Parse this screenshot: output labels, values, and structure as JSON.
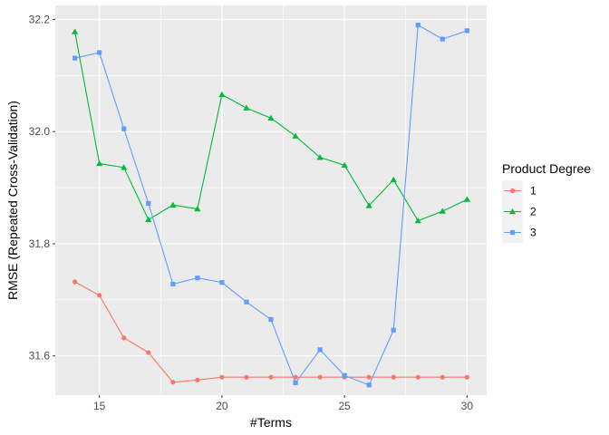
{
  "chart_data": {
    "type": "line",
    "xlabel": "#Terms",
    "ylabel": "RMSE (Repeated Cross-Validation)",
    "xlim": [
      13.2,
      30.8
    ],
    "ylim": [
      31.53,
      32.225
    ],
    "x_ticks": [
      15,
      20,
      25,
      30
    ],
    "x_tick_labels": [
      "15",
      "20",
      "25",
      "30"
    ],
    "y_ticks": [
      31.6,
      31.8,
      32.0,
      32.2
    ],
    "y_tick_labels": [
      "31.6",
      "31.8",
      "32.0",
      "32.2"
    ],
    "grid": true,
    "legend": {
      "title": "Product Degree",
      "placement": "right"
    },
    "x": [
      14,
      15,
      16,
      17,
      18,
      19,
      20,
      21,
      22,
      23,
      24,
      25,
      26,
      27,
      28,
      29,
      30
    ],
    "series": [
      {
        "name": "1",
        "color": "#F8766D",
        "marker": "circle",
        "values": [
          31.732,
          31.708,
          31.632,
          31.606,
          31.553,
          31.557,
          31.562,
          31.562,
          31.562,
          31.562,
          31.562,
          31.562,
          31.562,
          31.562,
          31.562,
          31.562,
          31.562
        ]
      },
      {
        "name": "2",
        "color": "#00BA38",
        "marker": "triangle",
        "values": [
          32.178,
          31.943,
          31.936,
          31.843,
          31.869,
          31.862,
          32.066,
          32.042,
          32.024,
          31.992,
          31.954,
          31.94,
          31.868,
          31.914,
          31.841,
          31.858,
          31.879
        ]
      },
      {
        "name": "3",
        "color": "#619CFF",
        "marker": "square",
        "values": [
          32.131,
          32.141,
          32.005,
          31.872,
          31.728,
          31.739,
          31.731,
          31.696,
          31.665,
          31.552,
          31.611,
          31.565,
          31.548,
          31.646,
          32.19,
          32.165,
          32.18
        ]
      }
    ]
  }
}
